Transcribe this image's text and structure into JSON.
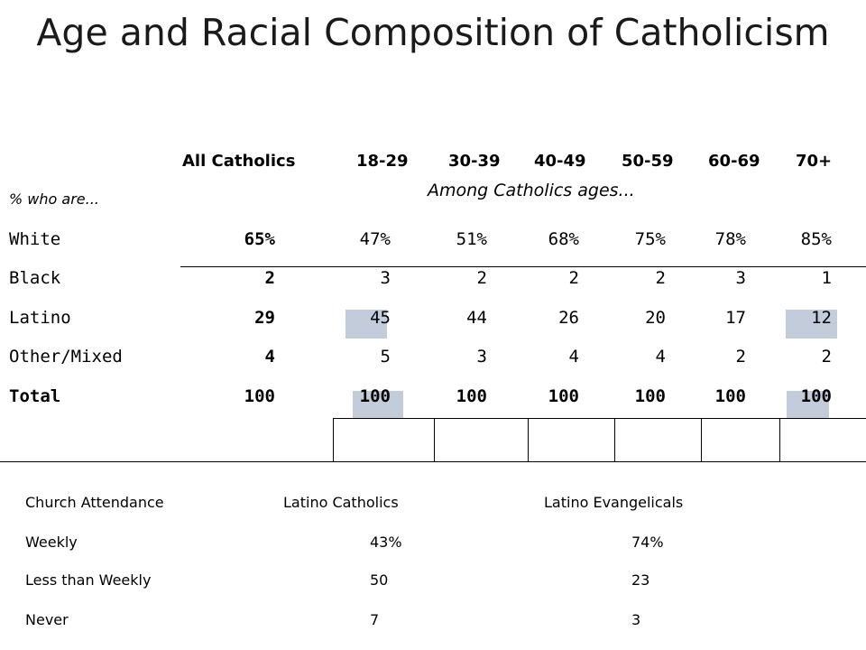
{
  "title": "Age and Racial Composition of Catholicism",
  "table": {
    "columns": [
      "All Catholics",
      "18-29",
      "30-39",
      "40-49",
      "50-59",
      "60-69",
      "70+"
    ],
    "row_prefix": "% who are...",
    "subheader": "Among Catholics ages...",
    "rows": [
      {
        "label": "White",
        "values": [
          "65%",
          "47%",
          "51%",
          "68%",
          "75%",
          "78%",
          "85%"
        ]
      },
      {
        "label": "Black",
        "values": [
          "2",
          "3",
          "2",
          "2",
          "2",
          "3",
          "1"
        ]
      },
      {
        "label": "Latino",
        "values": [
          "29",
          "45",
          "44",
          "26",
          "20",
          "17",
          "12"
        ]
      },
      {
        "label": "Other/Mixed",
        "values": [
          "4",
          "5",
          "3",
          "4",
          "4",
          "2",
          "2"
        ]
      },
      {
        "label": "Total",
        "values": [
          "100",
          "100",
          "100",
          "100",
          "100",
          "100",
          "100"
        ]
      }
    ],
    "highlight_color": "#c2ccdb"
  },
  "attendance": {
    "headers": [
      "Church Attendance",
      "Latino Catholics",
      "Latino Evangelicals"
    ],
    "rows": [
      {
        "label": "Weekly",
        "catholics": "43%",
        "evangelicals": "74%"
      },
      {
        "label": "Less than Weekly",
        "catholics": "50",
        "evangelicals": "23"
      },
      {
        "label": "Never",
        "catholics": "7",
        "evangelicals": "3"
      }
    ]
  }
}
